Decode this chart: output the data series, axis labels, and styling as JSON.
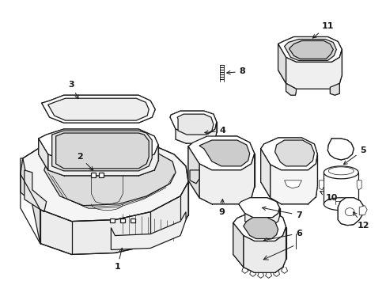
{
  "bg": "#ffffff",
  "lc": "#1a1a1a",
  "lw": 0.9,
  "tlw": 0.5,
  "fig_w": 4.89,
  "fig_h": 3.6,
  "dpi": 100
}
